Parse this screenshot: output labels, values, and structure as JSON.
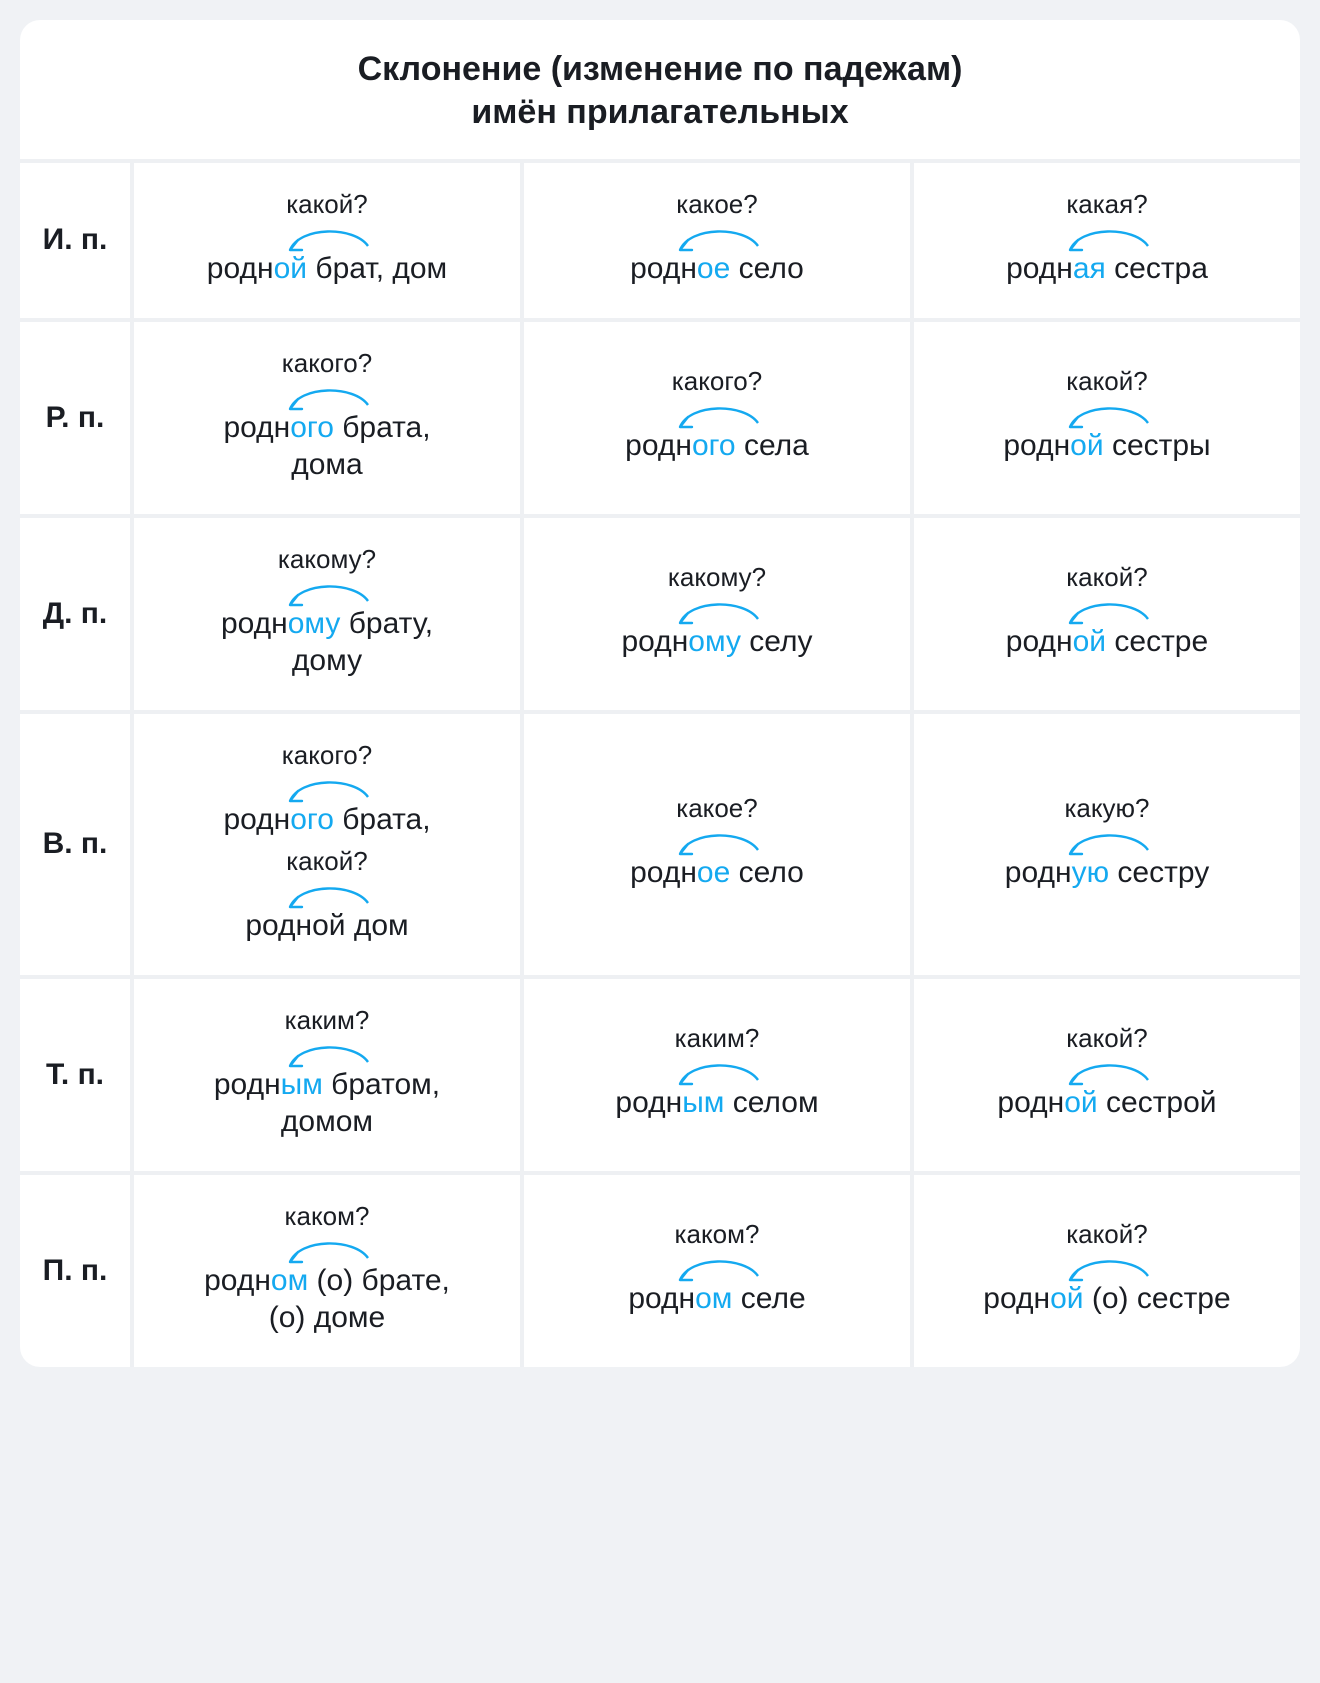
{
  "title_line1": "Склонение (изменение по падежам)",
  "title_line2": "имён прилагательных",
  "colors": {
    "highlight": "#14a9f0",
    "arc_stroke": "#14a9f0",
    "text": "#1a1d23",
    "cell_bg": "#ffffff",
    "gap_bg": "#eef0f3"
  },
  "cases": [
    "И. п.",
    "Р. п.",
    "Д. п.",
    "В. п.",
    "Т. п.",
    "П. п."
  ],
  "rows": [
    [
      {
        "q": "какой?",
        "phrase": [
          [
            "родн",
            0
          ],
          [
            "ой",
            1
          ],
          [
            " брат, дом",
            0
          ]
        ]
      },
      {
        "q": "какое?",
        "phrase": [
          [
            "родн",
            0
          ],
          [
            "ое",
            1
          ],
          [
            " село",
            0
          ]
        ]
      },
      {
        "q": "какая?",
        "phrase": [
          [
            "родн",
            0
          ],
          [
            "ая",
            1
          ],
          [
            " сестра",
            0
          ]
        ]
      }
    ],
    [
      {
        "q": "какого?",
        "phrase": [
          [
            "родн",
            0
          ],
          [
            "ого",
            1
          ],
          [
            " брата,",
            0
          ]
        ],
        "tail": "дома"
      },
      {
        "q": "какого?",
        "phrase": [
          [
            "родн",
            0
          ],
          [
            "ого",
            1
          ],
          [
            " села",
            0
          ]
        ]
      },
      {
        "q": "какой?",
        "phrase": [
          [
            "родн",
            0
          ],
          [
            "ой",
            1
          ],
          [
            " сестры",
            0
          ]
        ]
      }
    ],
    [
      {
        "q": "какому?",
        "phrase": [
          [
            "родн",
            0
          ],
          [
            "ому",
            1
          ],
          [
            " брату,",
            0
          ]
        ],
        "tail": "дому"
      },
      {
        "q": "какому?",
        "phrase": [
          [
            "родн",
            0
          ],
          [
            "ому",
            1
          ],
          [
            " селу",
            0
          ]
        ]
      },
      {
        "q": "какой?",
        "phrase": [
          [
            "родн",
            0
          ],
          [
            "ой",
            1
          ],
          [
            " сестре",
            0
          ]
        ]
      }
    ],
    [
      {
        "multi": [
          {
            "q": "какого?",
            "phrase": [
              [
                "родн",
                0
              ],
              [
                "ого",
                1
              ],
              [
                " брата,",
                0
              ]
            ]
          },
          {
            "q": "какой?",
            "phrase": [
              [
                "родной дом",
                0
              ]
            ]
          }
        ]
      },
      {
        "q": "какое?",
        "phrase": [
          [
            "родн",
            0
          ],
          [
            "ое",
            1
          ],
          [
            " село",
            0
          ]
        ]
      },
      {
        "q": "какую?",
        "phrase": [
          [
            "родн",
            0
          ],
          [
            "ую",
            1
          ],
          [
            " сестру",
            0
          ]
        ]
      }
    ],
    [
      {
        "q": "каким?",
        "phrase": [
          [
            "родн",
            0
          ],
          [
            "ым",
            1
          ],
          [
            " братом,",
            0
          ]
        ],
        "tail": "домом"
      },
      {
        "q": "каким?",
        "phrase": [
          [
            "родн",
            0
          ],
          [
            "ым",
            1
          ],
          [
            " селом",
            0
          ]
        ]
      },
      {
        "q": "какой?",
        "phrase": [
          [
            "родн",
            0
          ],
          [
            "ой",
            1
          ],
          [
            " сестрой",
            0
          ]
        ]
      }
    ],
    [
      {
        "q": "каком?",
        "phrase": [
          [
            "родн",
            0
          ],
          [
            "ом",
            1
          ],
          [
            " (о) брате,",
            0
          ]
        ],
        "tail": "(о) доме"
      },
      {
        "q": "каком?",
        "phrase": [
          [
            "родн",
            0
          ],
          [
            "ом",
            1
          ],
          [
            " селе",
            0
          ]
        ]
      },
      {
        "q": "какой?",
        "phrase": [
          [
            "родн",
            0
          ],
          [
            "ой",
            1
          ],
          [
            " (о) сестре",
            0
          ]
        ]
      }
    ]
  ]
}
